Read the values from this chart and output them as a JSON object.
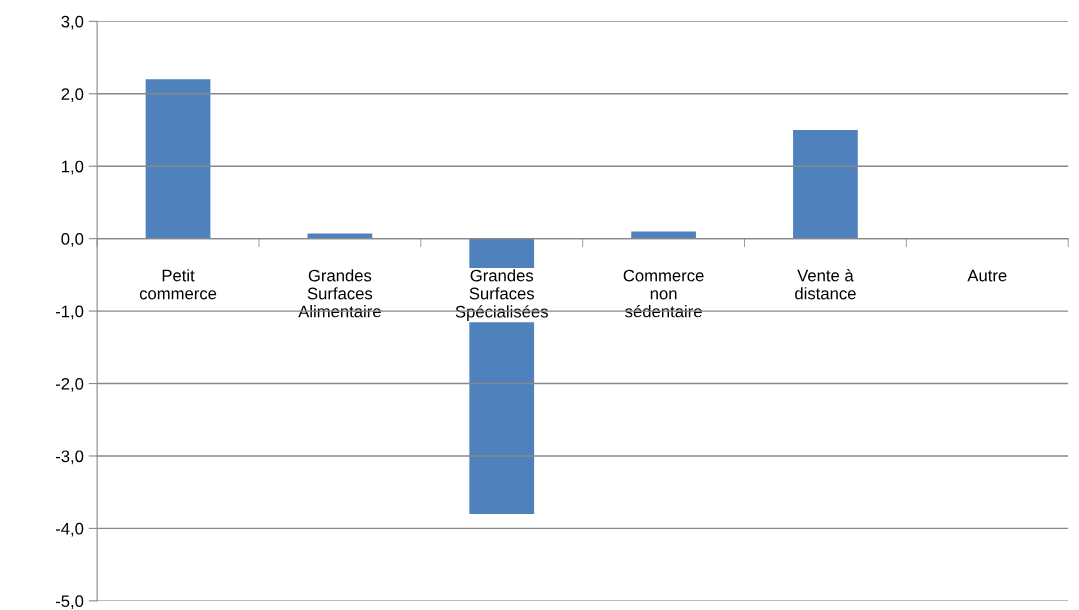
{
  "chart_data": {
    "type": "bar",
    "categories": [
      "Petit\ncommerce",
      "Grandes\nSurfaces\nAlimentaire",
      "Grandes\nSurfaces\nSpécialisées",
      "Commerce\nnon\nsédentaire",
      "Vente à\ndistance",
      "Autre"
    ],
    "values": [
      2.2,
      0.07,
      -3.8,
      0.1,
      1.5,
      0
    ],
    "color": "#4f81bd",
    "ylim": [
      -5,
      3
    ],
    "yticks": [
      {
        "value": -5,
        "label": "-5,0"
      },
      {
        "value": -4,
        "label": "-4,0"
      },
      {
        "value": -3,
        "label": "-3,0"
      },
      {
        "value": -2,
        "label": "-2,0"
      },
      {
        "value": -1,
        "label": "-1,0"
      },
      {
        "value": 0,
        "label": "0,0"
      },
      {
        "value": 1,
        "label": "1,0"
      },
      {
        "value": 2,
        "label": "2,0"
      },
      {
        "value": 3,
        "label": "3,0"
      }
    ],
    "grid": "y",
    "legend": false
  }
}
